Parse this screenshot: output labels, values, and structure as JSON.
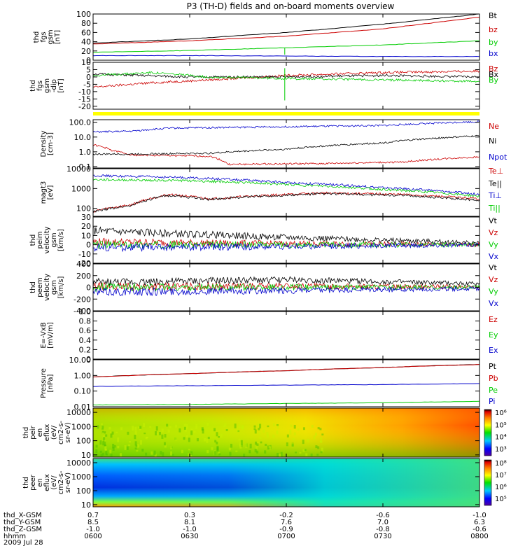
{
  "chart_data": {
    "type": "line",
    "title": "P3 (TH-D) fields and on-board moments overview",
    "x_axis": {
      "range_labels": [
        "0600",
        "0800"
      ],
      "tick_labels": [
        "0600",
        "0630",
        "0700",
        "0730",
        "0800"
      ],
      "ephemeris_rows": [
        {
          "label": "thd_X-GSM",
          "values": [
            "0.7",
            "0.3",
            "-0.2",
            "-0.6",
            "-1.0"
          ]
        },
        {
          "label": "thd_Y-GSM",
          "values": [
            "8.5",
            "8.1",
            "7.6",
            "7.0",
            "6.3"
          ]
        },
        {
          "label": "thd_Z-GSM",
          "values": [
            "-1.0",
            "-1.0",
            "-0.9",
            "-0.8",
            "-0.6"
          ]
        },
        {
          "label": "hhmm",
          "values": [
            "0600",
            "0630",
            "0700",
            "0730",
            "0800"
          ]
        }
      ],
      "date_label": "2009 Jul 28"
    },
    "panels": [
      {
        "id": "fgs_gsm",
        "type": "line",
        "ylabel_lines": [
          "thd",
          "fgs",
          "gsm",
          "[nT]"
        ],
        "ylim": [
          0,
          100
        ],
        "ytick_values": [
          0,
          20,
          40,
          60,
          80,
          100
        ],
        "ytick_labels": [
          "0",
          "20",
          "40",
          "60",
          "80",
          "100"
        ],
        "series": [
          {
            "name": "Bt",
            "color": "#000000",
            "x": [
              0,
              0.25,
              0.5,
              0.75,
              1.0
            ],
            "values": [
              37,
              46,
              60,
              78,
              100
            ]
          },
          {
            "name": "bz",
            "color": "#cc0000",
            "x": [
              0,
              0.25,
              0.5,
              0.75,
              1.0
            ],
            "values": [
              35,
              42,
              52,
              68,
              93
            ]
          },
          {
            "name": "by",
            "color": "#00cc00",
            "x": [
              0,
              0.25,
              0.5,
              0.75,
              1.0
            ],
            "values": [
              17,
              21,
              27,
              33,
              42
            ]
          },
          {
            "name": "bx",
            "color": "#0000cc",
            "x": [
              0,
              0.25,
              0.5,
              0.75,
              1.0
            ],
            "values": [
              10,
              10,
              9,
              8,
              8
            ]
          }
        ]
      },
      {
        "id": "fgs_gsm_dip",
        "type": "line",
        "ylabel_lines": [
          "thd",
          "fgs",
          "gsm",
          "-dip",
          "[nT]"
        ],
        "ylim": [
          -22,
          10
        ],
        "ytick_values": [
          -20,
          -15,
          -10,
          -5,
          0,
          5,
          10
        ],
        "ytick_labels": [
          "-20",
          "-15",
          "-10",
          "-5",
          "0",
          "5",
          "10"
        ],
        "series": [
          {
            "name": "Bz",
            "color": "#cc0000",
            "x": [
              0,
              0.15,
              0.3,
              0.5,
              0.75,
              1.0
            ],
            "values": [
              -7,
              -4,
              -2,
              1,
              3,
              4
            ]
          },
          {
            "name": "Bx",
            "color": "#000000",
            "x": [
              0,
              0.25,
              0.5,
              0.75,
              1.0
            ],
            "values": [
              2,
              0,
              0,
              1,
              0
            ]
          },
          {
            "name": "By",
            "color": "#00cc00",
            "x": [
              0,
              0.15,
              0.3,
              0.5,
              0.75,
              1.0
            ],
            "values": [
              1,
              3,
              0,
              -1,
              -2,
              -3
            ]
          }
        ]
      },
      {
        "id": "mode_bar",
        "type": "bar",
        "color": "#ffff00"
      },
      {
        "id": "density",
        "type": "line",
        "log": true,
        "ylabel_lines": [
          "Density",
          "[cm-3]"
        ],
        "ylim": [
          0.08,
          150
        ],
        "ytick_values": [
          0.1,
          1.0,
          10.0,
          100.0
        ],
        "ytick_labels": [
          "0.1",
          "1.0",
          "10.0",
          "100.0"
        ],
        "series": [
          {
            "name": "Ne",
            "color": "#cc0000",
            "x": [
              0,
              0.05,
              0.1,
              0.3,
              0.35,
              0.6,
              0.8,
              1.0
            ],
            "values": [
              3,
              1.2,
              0.6,
              0.5,
              0.14,
              0.16,
              0.2,
              0.45
            ]
          },
          {
            "name": "Ni",
            "color": "#000000",
            "x": [
              0,
              0.1,
              0.3,
              0.5,
              0.75,
              1.0
            ],
            "values": [
              0.7,
              0.7,
              0.8,
              1.5,
              4,
              12
            ]
          },
          {
            "name": "Npot",
            "color": "#0000cc",
            "x": [
              0,
              0.1,
              0.2,
              0.5,
              0.75,
              1.0
            ],
            "values": [
              22,
              25,
              40,
              50,
              60,
              110
            ]
          }
        ]
      },
      {
        "id": "temperature",
        "type": "line",
        "log": true,
        "ylabel_lines": [
          "magt3",
          "[eV]"
        ],
        "ylim": [
          40,
          10000
        ],
        "ytick_values": [
          100,
          1000,
          10000
        ],
        "ytick_labels": [
          "100",
          "1000",
          "10000"
        ],
        "series": [
          {
            "name": "Te⊥",
            "color": "#cc0000",
            "x": [
              0,
              0.1,
              0.2,
              0.3,
              0.4,
              0.6,
              0.8,
              1.0
            ],
            "values": [
              70,
              150,
              500,
              300,
              400,
              600,
              500,
              300
            ]
          },
          {
            "name": "Te||",
            "color": "#000000",
            "x": [
              0,
              0.1,
              0.2,
              0.3,
              0.4,
              0.6,
              0.8,
              1.0
            ],
            "values": [
              65,
              140,
              450,
              280,
              380,
              550,
              450,
              250
            ]
          },
          {
            "name": "Ti⊥",
            "color": "#0000cc",
            "x": [
              0,
              0.25,
              0.5,
              0.75,
              1.0
            ],
            "values": [
              4500,
              3500,
              2000,
              1100,
              500
            ]
          },
          {
            "name": "Ti||",
            "color": "#00cc00",
            "x": [
              0,
              0.25,
              0.5,
              0.75,
              1.0
            ],
            "values": [
              2800,
              2500,
              1600,
              900,
              400
            ]
          }
        ]
      },
      {
        "id": "peim_velocity_gsm",
        "type": "line",
        "ylabel_lines": [
          "thd",
          "peim",
          "velocity",
          "gsm",
          "[km/s]"
        ],
        "ylim": [
          -20,
          30
        ],
        "ytick_values": [
          -20,
          -10,
          0,
          10,
          20,
          30
        ],
        "ytick_labels": [
          "-20",
          "-10",
          "0",
          "10",
          "20",
          "30"
        ],
        "series": [
          {
            "name": "Vt",
            "color": "#000000",
            "x": [
              0,
              0.5,
              1.0
            ],
            "values": [
              15,
              8,
              2
            ]
          },
          {
            "name": "Vz",
            "color": "#cc0000",
            "x": [
              0,
              0.5,
              1.0
            ],
            "values": [
              3,
              1,
              0
            ]
          },
          {
            "name": "Vy",
            "color": "#00cc00",
            "x": [
              0,
              0.5,
              1.0
            ],
            "values": [
              0,
              0,
              0
            ]
          },
          {
            "name": "Vx",
            "color": "#0000cc",
            "x": [
              0,
              0.5,
              1.0
            ],
            "values": [
              -3,
              -2,
              0
            ]
          }
        ]
      },
      {
        "id": "peem_velocity_gsm",
        "type": "line",
        "ylabel_lines": [
          "thd",
          "peem",
          "velocity",
          "gsm",
          "[km/s]"
        ],
        "ylim": [
          -400,
          400
        ],
        "ytick_values": [
          -400,
          -200,
          0,
          200,
          400
        ],
        "ytick_labels": [
          "-400",
          "-200",
          "0",
          "200",
          "400"
        ],
        "series": [
          {
            "name": "Vt",
            "color": "#000000",
            "x": [
              0,
              0.5,
              1.0
            ],
            "values": [
              80,
              130,
              60
            ]
          },
          {
            "name": "Vz",
            "color": "#cc0000",
            "x": [
              0,
              0.5,
              1.0
            ],
            "values": [
              10,
              20,
              5
            ]
          },
          {
            "name": "Vy",
            "color": "#00cc00",
            "x": [
              0,
              0.5,
              1.0
            ],
            "values": [
              0,
              0,
              0
            ]
          },
          {
            "name": "Vx",
            "color": "#0000cc",
            "x": [
              0,
              0.5,
              1.0
            ],
            "values": [
              -80,
              -60,
              -20
            ]
          }
        ]
      },
      {
        "id": "efield",
        "type": "line",
        "ylabel_lines": [
          "E=-VxB",
          "[mV/m]"
        ],
        "ylim": [
          0,
          1.0
        ],
        "ytick_values": [
          0,
          0.2,
          0.4,
          0.6,
          0.8,
          1.0
        ],
        "ytick_labels": [
          "0",
          "0.2",
          "0.4",
          "0.6",
          "0.8",
          "1.0"
        ],
        "series": [
          {
            "name": "Ez",
            "color": "#cc0000",
            "x": [],
            "values": []
          },
          {
            "name": "Ey",
            "color": "#00cc00",
            "x": [],
            "values": []
          },
          {
            "name": "Ex",
            "color": "#0000cc",
            "x": [],
            "values": []
          }
        ]
      },
      {
        "id": "pressure",
        "type": "line",
        "log": true,
        "ylabel_lines": [
          "Pressure",
          "[nPa]"
        ],
        "ylim": [
          0.01,
          10
        ],
        "ytick_values": [
          0.01,
          0.1,
          1.0,
          10.0
        ],
        "ytick_labels": [
          "0.01",
          "0.10",
          "1.00",
          "10.00"
        ],
        "series": [
          {
            "name": "Pt",
            "color": "#000000",
            "x": [
              0,
              0.25,
              0.5,
              0.75,
              1.0
            ],
            "values": [
              0.8,
              1.3,
              2.0,
              3.2,
              5.0
            ]
          },
          {
            "name": "Pb",
            "color": "#cc0000",
            "x": [
              0,
              0.25,
              0.5,
              0.75,
              1.0
            ],
            "values": [
              0.8,
              1.3,
              2.0,
              3.2,
              5.0
            ]
          },
          {
            "name": "Pe",
            "color": "#00cc00",
            "x": [
              0,
              0.25,
              0.5,
              0.75,
              1.0
            ],
            "values": [
              0.013,
              0.014,
              0.016,
              0.018,
              0.022
            ]
          },
          {
            "name": "Pi",
            "color": "#0000cc",
            "x": [
              0,
              0.25,
              0.5,
              0.75,
              1.0
            ],
            "values": [
              0.2,
              0.22,
              0.24,
              0.26,
              0.3
            ]
          }
        ]
      },
      {
        "id": "peir_eflux",
        "type": "heatmap",
        "log": true,
        "ylabel_lines": [
          "thd",
          "peir",
          "en",
          "eflux",
          "(eV/",
          "cm2-s-",
          "sr-eV)"
        ],
        "ylim": [
          7,
          20000
        ],
        "ytick_values": [
          10,
          100,
          1000,
          10000
        ],
        "ytick_labels": [
          "10",
          "100",
          "1000",
          "10000"
        ],
        "colorbar": {
          "labels": [
            "10³",
            "10⁴",
            "10⁵",
            "10⁶"
          ],
          "exponents": [
            3,
            4,
            5,
            6
          ]
        }
      },
      {
        "id": "peer_eflux",
        "type": "heatmap",
        "log": true,
        "ylabel_lines": [
          "thd",
          "peer",
          "en",
          "eflux",
          "(eV/",
          "cm2-s-",
          "sr-eV)"
        ],
        "ylim": [
          7,
          20000
        ],
        "ytick_values": [
          10,
          100,
          1000,
          10000
        ],
        "ytick_labels": [
          "10",
          "100",
          "1000",
          "10000"
        ],
        "colorbar": {
          "labels": [
            "10⁵",
            "10⁶",
            "10⁷",
            "10⁸"
          ],
          "exponents": [
            5,
            6,
            7,
            8
          ]
        }
      }
    ]
  }
}
